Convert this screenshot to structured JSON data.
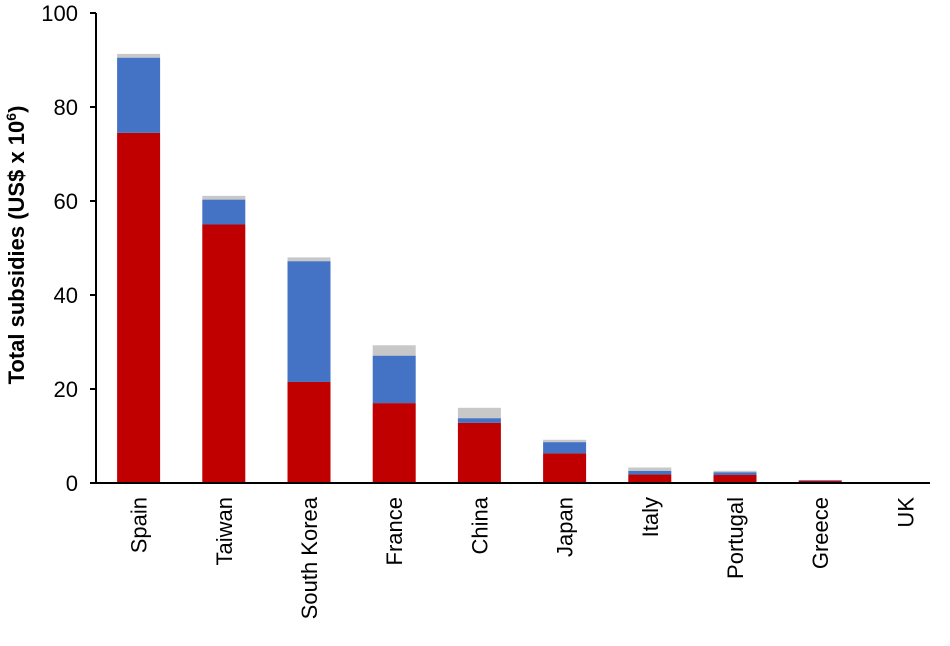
{
  "chart_data": {
    "type": "bar",
    "stacked": true,
    "categories": [
      "Spain",
      "Taiwan",
      "South Korea",
      "France",
      "China",
      "Japan",
      "Italy",
      "Portugal",
      "Greece",
      "UK"
    ],
    "series": [
      {
        "values": [
          74.5,
          55,
          21.5,
          17,
          12.8,
          6.3,
          1.8,
          1.7,
          0.5,
          0.1
        ],
        "color": "#c00000"
      },
      {
        "values": [
          16,
          5.3,
          25.7,
          10.1,
          1,
          2.4,
          0.8,
          0.6,
          0.1,
          0
        ],
        "color": "#4472c4"
      },
      {
        "values": [
          0.8,
          0.8,
          0.8,
          2.2,
          2.2,
          0.5,
          0.7,
          0.3,
          0,
          0
        ],
        "color": "#c8c8c8"
      }
    ],
    "ylabel": "Total subsidies (US$ x 10",
    "ylabel_superscript": "6",
    "ylabel_suffix": ")",
    "ylim": [
      0,
      100
    ],
    "yticks": [
      0,
      20,
      40,
      60,
      80,
      100
    ],
    "grid": false,
    "legend": "none"
  }
}
